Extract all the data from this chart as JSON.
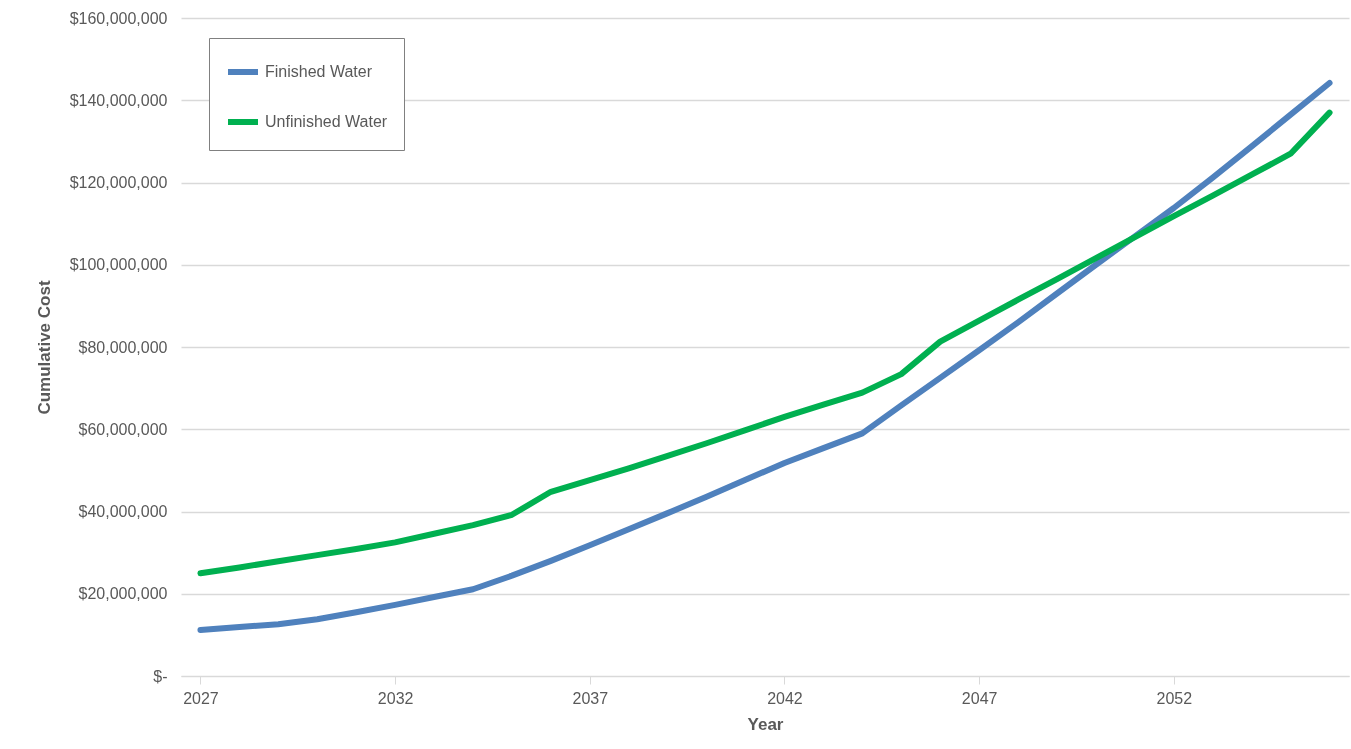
{
  "chart_data": {
    "type": "line",
    "xlabel": "Year",
    "ylabel": "Cumulative Cost",
    "x": [
      2027,
      2028,
      2029,
      2030,
      2031,
      2032,
      2033,
      2034,
      2035,
      2036,
      2037,
      2038,
      2039,
      2040,
      2041,
      2042,
      2043,
      2044,
      2045,
      2046,
      2047,
      2048,
      2049,
      2050,
      2051,
      2052,
      2053,
      2054,
      2055,
      2056
    ],
    "series": [
      {
        "name": "Finished Water",
        "color": "#4f81bd",
        "values": [
          11200000,
          11900000,
          12600000,
          13800000,
          15500000,
          17300000,
          19200000,
          21100000,
          24400000,
          28000000,
          31800000,
          35700000,
          39600000,
          43600000,
          47700000,
          51800000,
          55400000,
          59000000,
          65800000,
          72500000,
          79200000,
          86000000,
          93000000,
          100000000,
          106900000,
          113800000,
          121200000,
          128800000,
          136500000,
          144200000
        ]
      },
      {
        "name": "Unfinished Water",
        "color": "#00b050",
        "values": [
          25000000,
          26400000,
          27900000,
          29400000,
          30900000,
          32500000,
          34600000,
          36700000,
          39200000,
          44800000,
          47600000,
          50500000,
          53500000,
          56600000,
          59800000,
          63000000,
          66000000,
          68900000,
          73400000,
          81300000,
          86400000,
          91500000,
          96500000,
          101600000,
          106700000,
          111800000,
          116800000,
          121900000,
          127000000,
          137000000
        ]
      }
    ],
    "xlim": [
      2026.5,
      2056.5
    ],
    "xticks": [
      2027,
      2032,
      2037,
      2042,
      2047,
      2052
    ],
    "ylim": [
      0,
      160000000
    ],
    "yticks": [
      {
        "value": 0,
        "label": "$-"
      },
      {
        "value": 20000000,
        "label": "$20,000,000"
      },
      {
        "value": 40000000,
        "label": "$40,000,000"
      },
      {
        "value": 60000000,
        "label": "$60,000,000"
      },
      {
        "value": 80000000,
        "label": "$80,000,000"
      },
      {
        "value": 100000000,
        "label": "$100,000,000"
      },
      {
        "value": 120000000,
        "label": "$120,000,000"
      },
      {
        "value": 140000000,
        "label": "$140,000,000"
      },
      {
        "value": 160000000,
        "label": "$160,000,000"
      }
    ],
    "grid": "y",
    "legend": "top left",
    "marker": "none",
    "line_style": "solid"
  }
}
